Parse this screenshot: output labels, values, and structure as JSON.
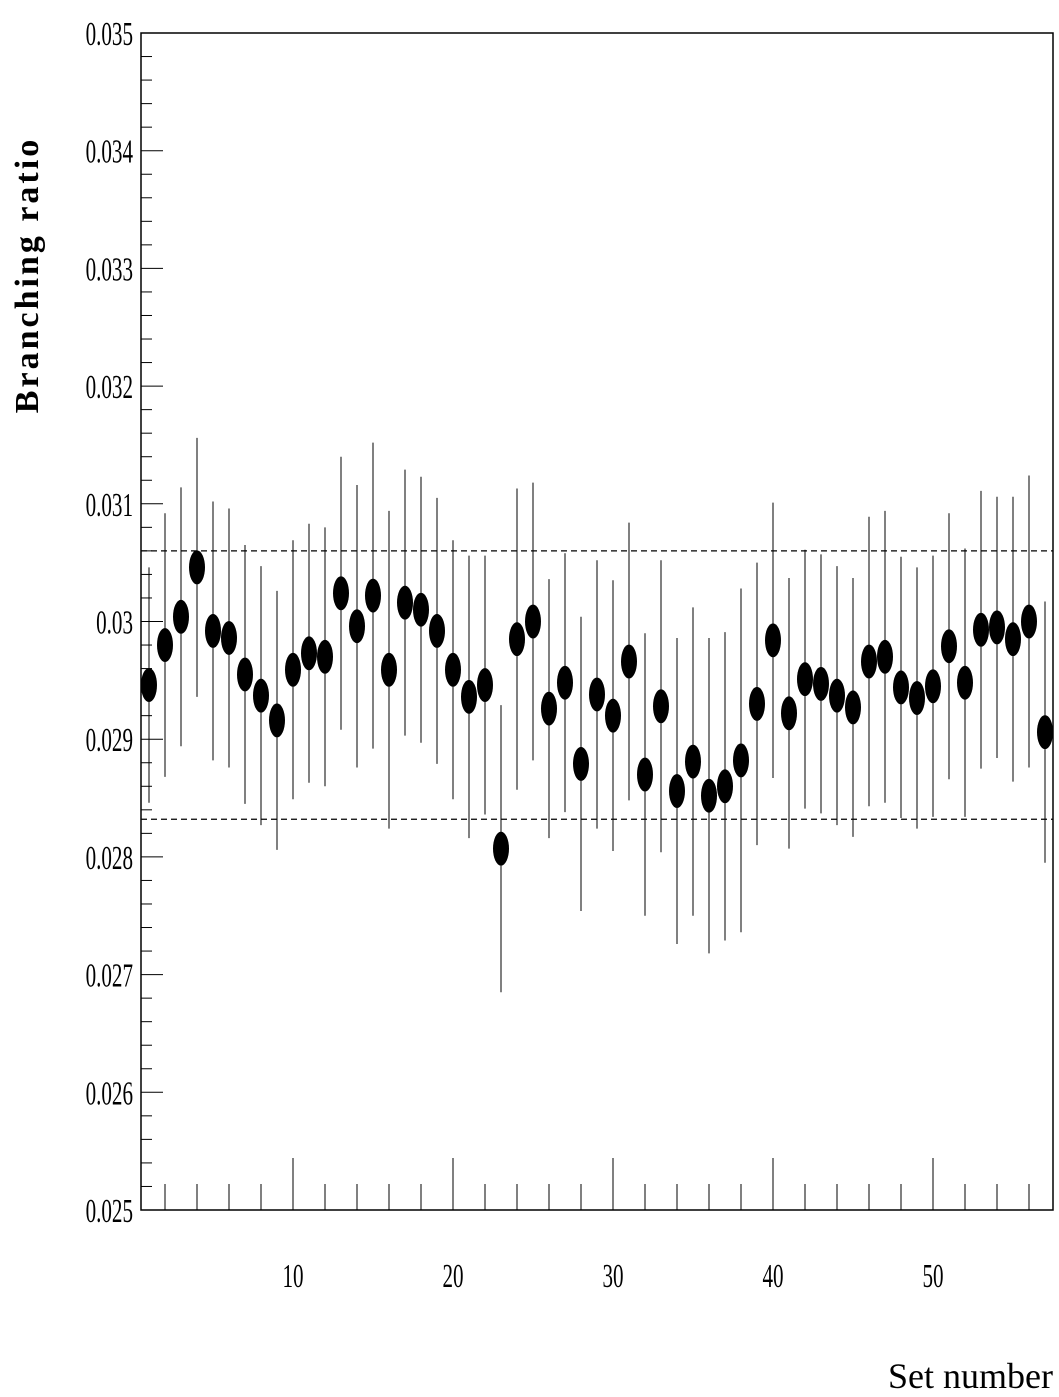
{
  "chart_data": {
    "type": "scatter",
    "xlabel": "Set number",
    "ylabel": "Branching ratio",
    "xlim": [
      0.5,
      57.5
    ],
    "ylim": [
      0.025,
      0.035
    ],
    "x_ticks": [
      10,
      20,
      30,
      40,
      50
    ],
    "x_tick_labels": [
      "10",
      "20",
      "30",
      "40",
      "50"
    ],
    "y_ticks": [
      0.025,
      0.026,
      0.027,
      0.028,
      0.029,
      0.03,
      0.031,
      0.032,
      0.033,
      0.034,
      0.035
    ],
    "y_tick_labels": [
      "0.025",
      "0.026",
      "0.027",
      "0.028",
      "0.029",
      "0.03",
      "0.031",
      "0.032",
      "0.033",
      "0.034",
      "0.035"
    ],
    "reference_lines": [
      0.02832,
      0.0306
    ],
    "grid": false,
    "legend": "none",
    "series": [
      {
        "x": [
          1,
          2,
          3,
          4,
          5,
          6,
          7,
          8,
          9,
          10,
          11,
          12,
          13,
          14,
          15,
          16,
          17,
          18,
          19,
          20,
          21,
          22,
          23,
          24,
          25,
          26,
          27,
          28,
          29,
          30,
          31,
          32,
          33,
          34,
          35,
          36,
          37,
          38,
          39,
          40,
          41,
          42,
          43,
          44,
          45,
          46,
          47,
          48,
          49,
          50,
          51,
          52,
          53,
          54,
          55,
          56,
          57
        ],
        "y": [
          0.02946,
          0.0298,
          0.03004,
          0.03046,
          0.02992,
          0.02986,
          0.02955,
          0.02937,
          0.02916,
          0.02959,
          0.02973,
          0.0297,
          0.03024,
          0.02996,
          0.03022,
          0.02959,
          0.03016,
          0.0301,
          0.02992,
          0.02959,
          0.02936,
          0.02946,
          0.02807,
          0.02985,
          0.03,
          0.02926,
          0.02948,
          0.02879,
          0.02938,
          0.0292,
          0.02966,
          0.0287,
          0.02928,
          0.02856,
          0.02881,
          0.02852,
          0.0286,
          0.02882,
          0.0293,
          0.02984,
          0.02922,
          0.02951,
          0.02947,
          0.02937,
          0.02927,
          0.02966,
          0.0297,
          0.02944,
          0.02935,
          0.02945,
          0.02979,
          0.02948,
          0.02993,
          0.02995,
          0.02985,
          0.03,
          0.02906
        ],
        "y_err": [
          0.001,
          0.00112,
          0.0011,
          0.0011,
          0.0011,
          0.0011,
          0.0011,
          0.0011,
          0.0011,
          0.0011,
          0.0011,
          0.0011,
          0.00116,
          0.0012,
          0.0013,
          0.00135,
          0.00113,
          0.00113,
          0.00113,
          0.0011,
          0.0012,
          0.0011,
          0.00122,
          0.00128,
          0.00118,
          0.0011,
          0.0011,
          0.00125,
          0.00114,
          0.00115,
          0.00118,
          0.0012,
          0.00124,
          0.0013,
          0.00131,
          0.00134,
          0.00131,
          0.00146,
          0.0012,
          0.00117,
          0.00115,
          0.0011,
          0.0011,
          0.0011,
          0.0011,
          0.00123,
          0.00124,
          0.00111,
          0.00111,
          0.00111,
          0.00113,
          0.00114,
          0.00118,
          0.00111,
          0.00121,
          0.00124,
          0.00111
        ]
      }
    ]
  }
}
